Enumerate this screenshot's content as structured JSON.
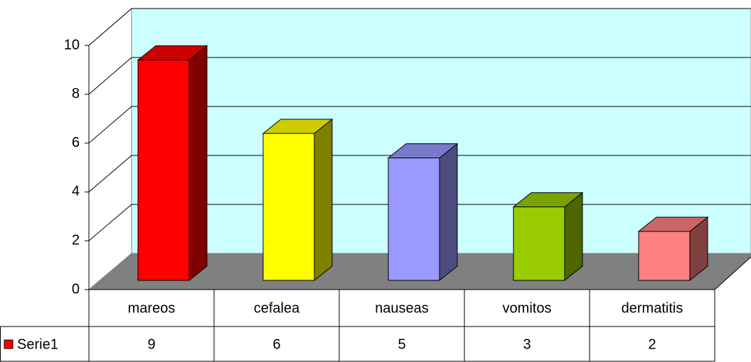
{
  "chart_data": {
    "type": "bar3d",
    "categories": [
      "mareos",
      "cefalea",
      "nauseas",
      "vomitos",
      "dermatitis"
    ],
    "series": [
      {
        "name": "Serie1",
        "color": "#ff0000",
        "values": [
          9,
          6,
          5,
          3,
          2
        ]
      }
    ],
    "colors": [
      "#ff0000",
      "#ffff00",
      "#9999ff",
      "#99cc00",
      "#ff8080"
    ],
    "ylim": [
      0,
      10
    ],
    "yticks": [
      0,
      2,
      4,
      6,
      8,
      10
    ],
    "grid": true
  }
}
